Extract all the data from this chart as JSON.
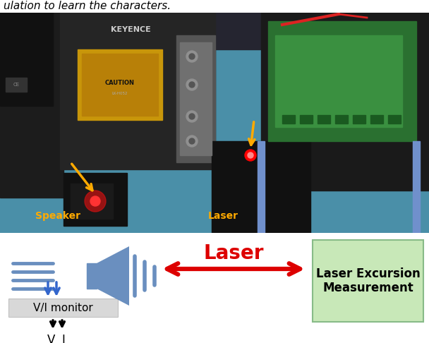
{
  "fig_width": 6.08,
  "fig_height": 4.86,
  "dpi": 100,
  "text_top": "ulation to learn the characters.",
  "speaker_color": "#6a8fbf",
  "arrow_color": "#dd0000",
  "blue_arrow_color": "#3366cc",
  "vi_box_color": "#d8d8d8",
  "laser_box_color": "#c8e8b8",
  "laser_box_border": "#88bb88",
  "laser_label": "Laser",
  "laser_excursion_label_line1": "Laser Excursion",
  "laser_excursion_label_line2": "Measurement",
  "vi_monitor_label": "V/I monitor",
  "v_label": "V",
  "i_label": "I",
  "speaker_label_color": "#ffaa00",
  "laser_label_color": "#ffaa00",
  "photo_bg": "#4a8fa8",
  "photo_left_equip": "#1c1c1c",
  "photo_center_equip": "#252525",
  "photo_caution_yellow": "#c8960a",
  "photo_green_board": "#2a7030",
  "photo_green_board2": "#3a9040"
}
